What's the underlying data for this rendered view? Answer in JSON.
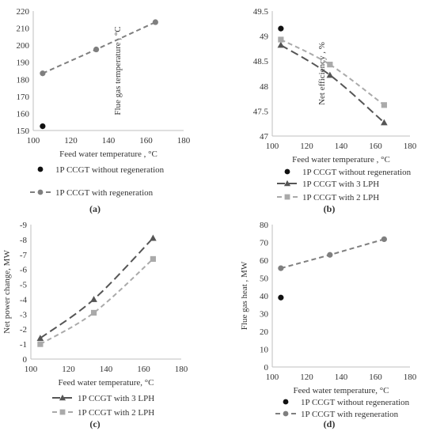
{
  "chart_data": [
    {
      "panel": "(a)",
      "type": "scatter",
      "xlabel": "Feed water temperature , °C",
      "ylabel": "Flue gas temperature , °C",
      "xlim": [
        100,
        180
      ],
      "ylim": [
        150,
        220
      ],
      "xticks": [
        100,
        120,
        140,
        160,
        180
      ],
      "yticks": [
        150,
        160,
        170,
        180,
        190,
        200,
        210,
        220
      ],
      "legend_position": "bottom",
      "series": [
        {
          "name": "1P CCGT without regeneration",
          "marker": "circle",
          "line": "none",
          "color": "#111111",
          "x": [
            105
          ],
          "y": [
            152.5
          ]
        },
        {
          "name": "1P CCGT with regeneration",
          "marker": "circle",
          "line": "dashed",
          "color": "#7f7f7f",
          "x": [
            105,
            133.5,
            165
          ],
          "y": [
            183.5,
            197.5,
            213.5
          ]
        }
      ]
    },
    {
      "panel": "(b)",
      "type": "line",
      "xlabel": "Feed water temperature , °C",
      "ylabel": "Net efficiency , %",
      "xlim": [
        100,
        180
      ],
      "ylim": [
        47,
        49.5
      ],
      "xticks": [
        100,
        120,
        140,
        160,
        180
      ],
      "yticks": [
        47,
        47.5,
        48,
        48.5,
        49,
        49.5
      ],
      "legend_position": "bottom",
      "series": [
        {
          "name": "1P CCGT without regeneration",
          "marker": "circle",
          "line": "none",
          "color": "#111111",
          "x": [
            105
          ],
          "y": [
            49.15
          ]
        },
        {
          "name": "1P CCGT with 3 LPH",
          "marker": "triangle",
          "line": "long-dash",
          "color": "#555555",
          "x": [
            105,
            133.5,
            165
          ],
          "y": [
            48.82,
            48.22,
            47.27
          ]
        },
        {
          "name": "1P CCGT with 2 LPH",
          "marker": "square",
          "line": "dashed",
          "color": "#aaaaaa",
          "x": [
            105,
            133.5,
            165
          ],
          "y": [
            48.93,
            48.43,
            47.62
          ]
        }
      ]
    },
    {
      "panel": "(c)",
      "type": "line",
      "xlabel": "Feed water temperature, °C",
      "ylabel": "Net power change, MW",
      "xlim": [
        100,
        180
      ],
      "ylim": [
        0,
        -9
      ],
      "y_inverted": true,
      "xticks": [
        100,
        120,
        140,
        160,
        180
      ],
      "yticks": [
        0,
        -1,
        -2,
        -3,
        -4,
        -5,
        -6,
        -7,
        -8,
        -9
      ],
      "legend_position": "bottom",
      "series": [
        {
          "name": "1P CCGT with 3 LPH",
          "marker": "triangle",
          "line": "long-dash",
          "color": "#555555",
          "x": [
            105,
            133.5,
            165
          ],
          "y": [
            -1.4,
            -4.0,
            -8.1
          ]
        },
        {
          "name": "1P CCGT with 2 LPH",
          "marker": "square",
          "line": "dashed",
          "color": "#aaaaaa",
          "x": [
            105,
            133.5,
            165
          ],
          "y": [
            -1.0,
            -3.1,
            -6.7
          ]
        }
      ]
    },
    {
      "panel": "(d)",
      "type": "scatter",
      "xlabel": "Feed water temperature, °C",
      "ylabel": "Flue gas heat , MW",
      "xlim": [
        100,
        180
      ],
      "ylim": [
        0,
        80
      ],
      "xticks": [
        100,
        120,
        140,
        160,
        180
      ],
      "yticks": [
        0,
        10,
        20,
        30,
        40,
        50,
        60,
        70,
        80
      ],
      "legend_position": "bottom",
      "series": [
        {
          "name": "1P CCGT without regeneration",
          "marker": "circle",
          "line": "none",
          "color": "#111111",
          "x": [
            105
          ],
          "y": [
            39
          ]
        },
        {
          "name": "1P CCGT with regeneration",
          "marker": "circle",
          "line": "dashed",
          "color": "#7f7f7f",
          "x": [
            105,
            133.5,
            165
          ],
          "y": [
            55.5,
            63,
            71.8
          ]
        }
      ]
    }
  ]
}
